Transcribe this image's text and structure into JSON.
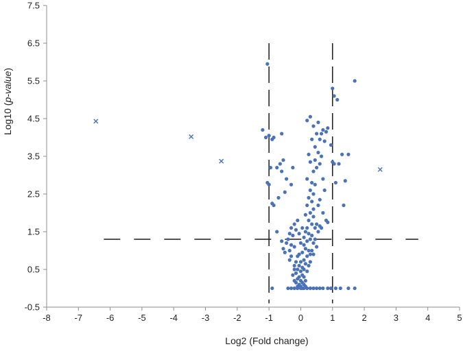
{
  "chart_data": {
    "type": "scatter",
    "title": "",
    "xlabel": "Log2 (Fold change)",
    "ylabel": {
      "prefix": "Log10 (",
      "italic": "p-value",
      "suffix": ")"
    },
    "xlim": [
      -8,
      5
    ],
    "ylim": [
      -0.5,
      7.5
    ],
    "xticks": [
      "-8",
      "-7",
      "-6",
      "-5",
      "-4",
      "-3",
      "-2",
      "-1",
      "0",
      "1",
      "2",
      "3",
      "4",
      "5"
    ],
    "yticks": [
      "-0.5",
      "0.5",
      "1.5",
      "2.5",
      "3.5",
      "4.5",
      "5.5",
      "6.5",
      "7.5"
    ],
    "grid": false,
    "legend": "none",
    "colors": {
      "points": "#4a72b8",
      "axis": "#8c8c8c",
      "thresholds": "#1a1a1a"
    },
    "thresholds": {
      "fold_change": [
        -1,
        1
      ],
      "p_value_y": 1.3,
      "vertical_range": [
        -0.4,
        6.5
      ],
      "horizontal_range": [
        -6.2,
        3.7
      ]
    },
    "series": [
      {
        "marker": "circle",
        "points": [
          [
            -1.05,
            5.95
          ],
          [
            1.0,
            5.3
          ],
          [
            1.05,
            5.1
          ],
          [
            1.15,
            5.0
          ],
          [
            1.7,
            5.5
          ],
          [
            -1.2,
            4.2
          ],
          [
            -1.1,
            4.0
          ],
          [
            -1.0,
            4.05
          ],
          [
            -0.85,
            4.0
          ],
          [
            -0.6,
            4.1
          ],
          [
            -0.9,
            3.95
          ],
          [
            0.2,
            4.45
          ],
          [
            0.3,
            4.55
          ],
          [
            0.4,
            4.3
          ],
          [
            0.55,
            4.4
          ],
          [
            0.7,
            4.2
          ],
          [
            0.85,
            4.25
          ],
          [
            0.5,
            4.1
          ],
          [
            0.65,
            4.1
          ],
          [
            0.8,
            4.15
          ],
          [
            0.6,
            3.95
          ],
          [
            0.75,
            3.9
          ],
          [
            0.45,
            3.75
          ],
          [
            0.95,
            3.8
          ],
          [
            0.35,
            3.95
          ],
          [
            0.25,
            3.55
          ],
          [
            0.55,
            3.6
          ],
          [
            0.65,
            3.5
          ],
          [
            0.45,
            3.4
          ],
          [
            0.3,
            3.35
          ],
          [
            0.6,
            3.3
          ],
          [
            0.5,
            3.2
          ],
          [
            0.4,
            3.1
          ],
          [
            1.3,
            3.55
          ],
          [
            1.5,
            3.55
          ],
          [
            1.2,
            3.3
          ],
          [
            1.0,
            3.35
          ],
          [
            1.05,
            3.3
          ],
          [
            1.1,
            2.8
          ],
          [
            1.4,
            2.85
          ],
          [
            1.35,
            2.2
          ],
          [
            -0.55,
            3.4
          ],
          [
            -0.65,
            3.3
          ],
          [
            -0.75,
            3.2
          ],
          [
            -0.6,
            3.1
          ],
          [
            -0.25,
            3.2
          ],
          [
            -0.45,
            2.9
          ],
          [
            -0.3,
            2.75
          ],
          [
            -0.5,
            2.55
          ],
          [
            -0.7,
            2.4
          ],
          [
            -1.05,
            2.8
          ],
          [
            -0.95,
            3.2
          ],
          [
            -0.85,
            2.2
          ],
          [
            -0.9,
            2.25
          ],
          [
            -1.0,
            2.75
          ],
          [
            -0.75,
            1.5
          ],
          [
            0.2,
            2.9
          ],
          [
            0.35,
            2.8
          ],
          [
            0.45,
            2.75
          ],
          [
            0.3,
            2.6
          ],
          [
            0.4,
            2.5
          ],
          [
            0.25,
            2.4
          ],
          [
            0.35,
            2.3
          ],
          [
            0.2,
            2.2
          ],
          [
            0.4,
            2.1
          ],
          [
            0.3,
            2.0
          ],
          [
            0.15,
            1.95
          ],
          [
            0.4,
            1.9
          ],
          [
            0.25,
            1.8
          ],
          [
            0.35,
            1.7
          ],
          [
            0.5,
            1.7
          ],
          [
            0.2,
            1.6
          ],
          [
            0.45,
            1.6
          ],
          [
            0.55,
            2.2
          ],
          [
            0.6,
            2.35
          ],
          [
            0.7,
            2.9
          ],
          [
            0.75,
            2.6
          ],
          [
            0.7,
            2.0
          ],
          [
            0.8,
            1.8
          ],
          [
            0.85,
            1.75
          ],
          [
            0.65,
            1.6
          ],
          [
            0.55,
            1.5
          ],
          [
            0.6,
            1.65
          ],
          [
            -0.1,
            1.8
          ],
          [
            -0.2,
            1.7
          ],
          [
            -0.3,
            1.6
          ],
          [
            -0.15,
            1.55
          ],
          [
            -0.35,
            1.45
          ],
          [
            -0.25,
            1.4
          ],
          [
            -0.05,
            1.45
          ],
          [
            -0.4,
            1.3
          ],
          [
            -0.45,
            1.2
          ],
          [
            -0.3,
            1.15
          ],
          [
            -0.2,
            1.1
          ],
          [
            -0.35,
            1.0
          ],
          [
            -0.5,
            0.95
          ],
          [
            -0.55,
            1.05
          ],
          [
            -0.6,
            1.25
          ],
          [
            0.05,
            1.6
          ],
          [
            0.15,
            1.5
          ],
          [
            0.25,
            1.45
          ],
          [
            0.35,
            1.4
          ],
          [
            0.1,
            1.35
          ],
          [
            0.3,
            1.3
          ],
          [
            0.2,
            1.25
          ],
          [
            0.4,
            1.2
          ],
          [
            0.45,
            1.3
          ],
          [
            0.5,
            1.1
          ],
          [
            0.0,
            1.2
          ],
          [
            0.1,
            1.15
          ],
          [
            0.15,
            1.05
          ],
          [
            0.25,
            1.0
          ],
          [
            0.05,
            0.95
          ],
          [
            -0.05,
            0.9
          ],
          [
            0.2,
            0.85
          ],
          [
            0.3,
            0.9
          ],
          [
            -0.1,
            0.85
          ],
          [
            0.1,
            0.75
          ],
          [
            -0.15,
            0.7
          ],
          [
            0.0,
            0.7
          ],
          [
            0.15,
            0.65
          ],
          [
            -0.2,
            0.6
          ],
          [
            0.05,
            0.55
          ],
          [
            -0.05,
            0.6
          ],
          [
            0.1,
            0.5
          ],
          [
            -0.1,
            0.5
          ],
          [
            0.0,
            0.45
          ],
          [
            0.2,
            0.45
          ],
          [
            -0.15,
            0.4
          ],
          [
            0.05,
            0.35
          ],
          [
            -0.05,
            0.3
          ],
          [
            0.1,
            0.3
          ],
          [
            -0.1,
            0.25
          ],
          [
            0.0,
            0.2
          ],
          [
            0.15,
            0.2
          ],
          [
            -0.2,
            0.2
          ],
          [
            0.05,
            0.15
          ],
          [
            -0.05,
            0.1
          ],
          [
            0.1,
            0.1
          ],
          [
            0.0,
            0.05
          ],
          [
            -0.1,
            0.05
          ],
          [
            0.05,
            0.0
          ],
          [
            0.15,
            0.05
          ],
          [
            -0.15,
            0.15
          ],
          [
            -0.25,
            0.35
          ],
          [
            -0.2,
            0.5
          ],
          [
            0.25,
            0.6
          ],
          [
            0.3,
            0.7
          ],
          [
            -0.3,
            0.85
          ],
          [
            0.35,
            1.0
          ],
          [
            -0.35,
            0.75
          ],
          [
            0.4,
            0.9
          ],
          [
            -0.9,
            0.0
          ],
          [
            -0.4,
            0.0
          ],
          [
            -0.3,
            0.0
          ],
          [
            -0.2,
            0.0
          ],
          [
            -0.1,
            0.0
          ],
          [
            0.0,
            0.0
          ],
          [
            0.1,
            0.0
          ],
          [
            0.2,
            0.0
          ],
          [
            0.3,
            0.0
          ],
          [
            0.4,
            0.0
          ],
          [
            0.5,
            0.0
          ],
          [
            0.6,
            0.0
          ],
          [
            0.7,
            0.0
          ],
          [
            0.85,
            0.0
          ],
          [
            0.95,
            0.0
          ],
          [
            1.1,
            0.0
          ],
          [
            1.25,
            0.0
          ],
          [
            1.5,
            0.0
          ],
          [
            1.7,
            0.0
          ]
        ]
      },
      {
        "marker": "cross",
        "points": [
          [
            -6.45,
            4.43
          ],
          [
            -3.45,
            4.02
          ],
          [
            -2.5,
            3.37
          ],
          [
            2.5,
            3.15
          ]
        ]
      }
    ]
  }
}
